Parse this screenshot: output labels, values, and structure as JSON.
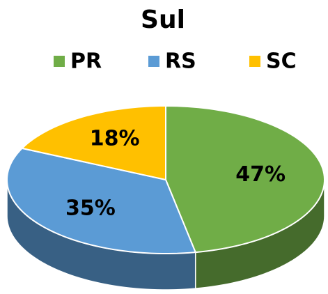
{
  "chart_data": {
    "type": "pie",
    "title": "Sul",
    "categories": [
      "PR",
      "RS",
      "SC"
    ],
    "values": [
      47,
      35,
      18
    ],
    "value_labels": [
      "47%",
      "35%",
      "18%"
    ],
    "colors": [
      "#70ad47",
      "#5b9bd5",
      "#ffc000"
    ],
    "legend": "top"
  }
}
